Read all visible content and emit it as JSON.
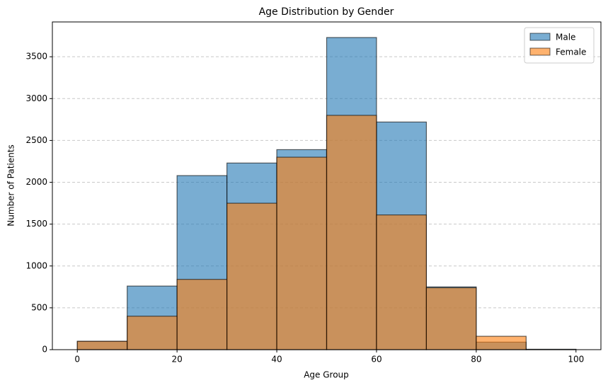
{
  "chart_data": {
    "type": "histogram",
    "title": "Age Distribution by Gender",
    "xlabel": "Age Group",
    "ylabel": "Number of Patients",
    "bins": [
      0,
      10,
      20,
      30,
      40,
      50,
      60,
      70,
      80,
      90,
      100
    ],
    "series": [
      {
        "name": "Male",
        "color": "#1f77b4",
        "values": [
          100,
          760,
          2080,
          2230,
          2390,
          3730,
          2720,
          750,
          90,
          5
        ]
      },
      {
        "name": "Female",
        "color": "#ff7f0e",
        "values": [
          100,
          400,
          840,
          1750,
          2300,
          2800,
          1610,
          740,
          160,
          2
        ]
      }
    ],
    "xlim": [
      -5,
      105
    ],
    "xticks": [
      0,
      20,
      40,
      60,
      80,
      100
    ],
    "ylim": [
      0,
      3916
    ],
    "yticks": [
      0,
      500,
      1000,
      1500,
      2000,
      2500,
      3000,
      3500
    ],
    "grid": true,
    "legend": "upper right"
  }
}
